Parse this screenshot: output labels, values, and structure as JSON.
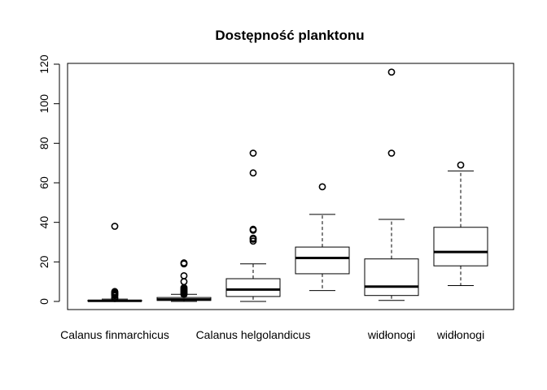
{
  "chart_data": {
    "type": "boxplot",
    "title": "Dostępność planktonu",
    "ylim": [
      -4,
      123
    ],
    "yticks": [
      0,
      20,
      40,
      60,
      80,
      100,
      120
    ],
    "category_labels": [
      {
        "text": "Calanus finmarchicus",
        "group": 1
      },
      {
        "text": "Calanus helgolandicus",
        "group": 3
      },
      {
        "text": "widłonogi",
        "group": 5
      },
      {
        "text": "widłonogi",
        "group": 6
      }
    ],
    "groups": [
      {
        "whisker_low": 0,
        "q1": 0.1,
        "median": 0.3,
        "q3": 0.6,
        "whisker_high": 1.2,
        "outliers": [
          1.5,
          2,
          3,
          3.5,
          4,
          4.5,
          5,
          38
        ]
      },
      {
        "whisker_low": 0,
        "q1": 0.5,
        "median": 1,
        "q3": 2,
        "whisker_high": 3.6,
        "outliers": [
          3.5,
          4,
          4.5,
          5,
          5.5,
          6,
          6.5,
          7,
          10,
          13,
          19,
          19.5
        ]
      },
      {
        "whisker_low": 0,
        "q1": 2.5,
        "median": 6,
        "q3": 11.5,
        "whisker_high": 19,
        "outliers": [
          30.5,
          31.5,
          32,
          36,
          36.5,
          65,
          75
        ]
      },
      {
        "whisker_low": 5.5,
        "q1": 14,
        "median": 22,
        "q3": 27.5,
        "whisker_high": 44,
        "outliers": [
          58
        ]
      },
      {
        "whisker_low": 0.5,
        "q1": 3,
        "median": 7.5,
        "q3": 21.5,
        "whisker_high": 41.5,
        "outliers": [
          75,
          116
        ]
      },
      {
        "whisker_low": 8,
        "q1": 18,
        "median": 25,
        "q3": 37.5,
        "whisker_high": 66,
        "outliers": [
          69
        ]
      }
    ]
  }
}
